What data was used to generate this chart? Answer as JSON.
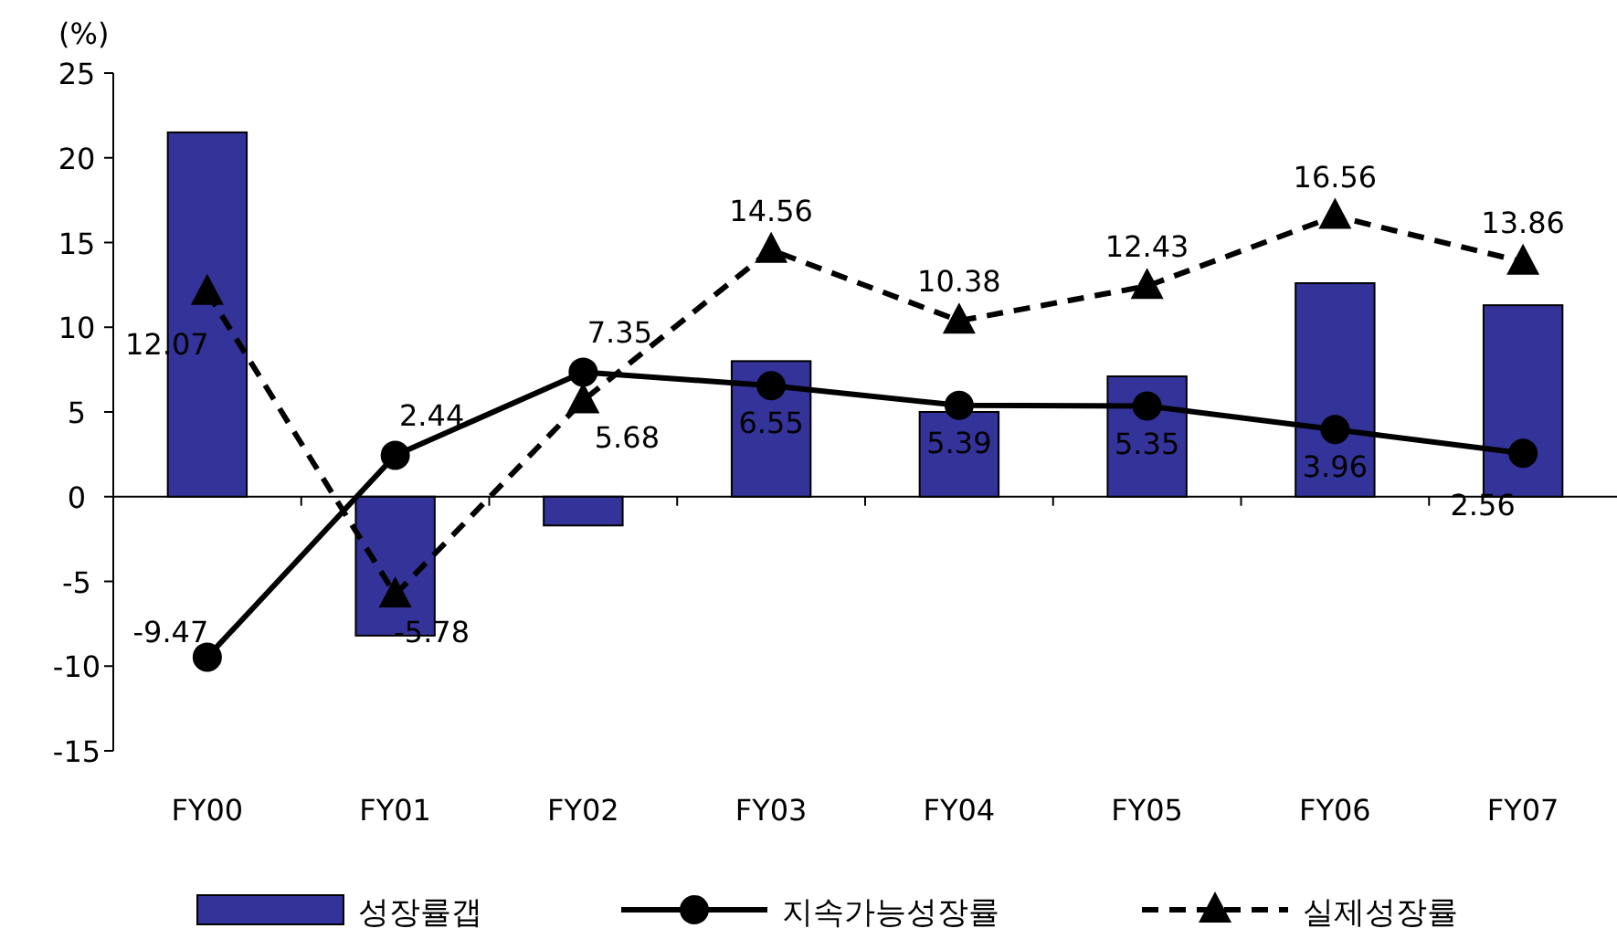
{
  "chart_data": {
    "type": "bar",
    "ylabel": "(%)",
    "categories": [
      "FY00",
      "FY01",
      "FY02",
      "FY03",
      "FY04",
      "FY05",
      "FY06",
      "FY07"
    ],
    "ylim": [
      -15,
      25
    ],
    "yticks": [
      -15,
      -10,
      -5,
      0,
      5,
      10,
      15,
      20,
      25
    ],
    "legend": "bottom",
    "series": [
      {
        "name": "성장률갭",
        "color": "#333399",
        "values": [
          21.5,
          -8.2,
          -1.7,
          8.0,
          5.0,
          7.1,
          12.6,
          11.3
        ]
      },
      {
        "name": "지속가능성장률",
        "type": "line",
        "color": "#000000",
        "marker": "circle",
        "line_style": "solid",
        "values": [
          -9.47,
          2.44,
          7.35,
          6.55,
          5.39,
          5.35,
          3.96,
          2.56
        ],
        "value_labels": [
          "-9.47",
          "2.44",
          "7.35",
          "6.55",
          "5.39",
          "5.35",
          "3.96",
          "2.56"
        ]
      },
      {
        "name": "실제성장률",
        "type": "line",
        "color": "#000000",
        "marker": "triangle",
        "line_style": "dashed",
        "values": [
          12.07,
          -5.78,
          5.68,
          14.56,
          10.38,
          12.43,
          16.56,
          13.86
        ],
        "value_labels": [
          "12.07",
          "-5.78",
          "5.68",
          "14.56",
          "10.38",
          "12.43",
          "16.56",
          "13.86"
        ]
      }
    ]
  }
}
